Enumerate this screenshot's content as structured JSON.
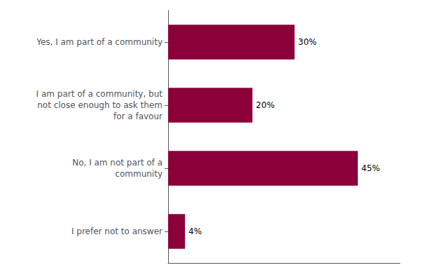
{
  "chart_data": {
    "type": "bar",
    "orientation": "horizontal",
    "categories": [
      "Yes, I am part of a community",
      "I am part of a community, but\nnot close enough to ask them\nfor a favour",
      "No, I am not part of a\ncommunity",
      "I prefer not to answer"
    ],
    "values": [
      30,
      20,
      45,
      4
    ],
    "value_labels": [
      "30%",
      "20%",
      "45%",
      "4%"
    ],
    "data_labels": true,
    "color": "#8B0038",
    "xlim": [
      0,
      55
    ],
    "tick_labels": "y",
    "grid": false
  }
}
